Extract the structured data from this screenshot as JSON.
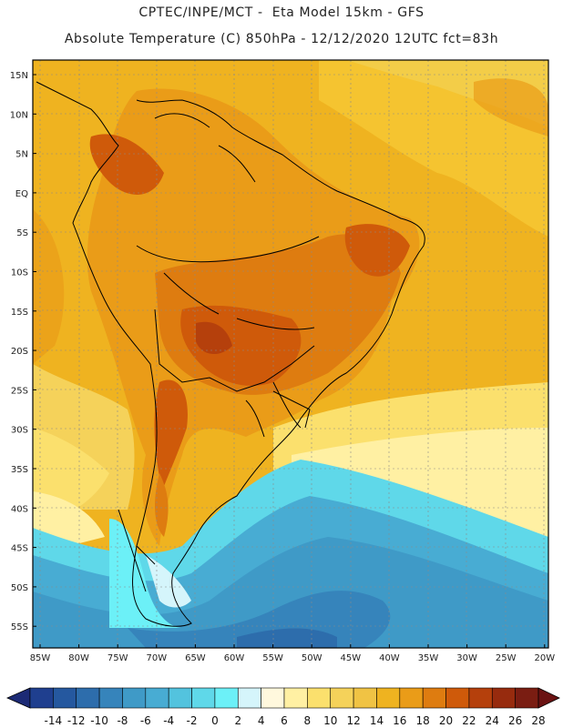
{
  "header": {
    "line1": "CPTEC/INPE/MCT -  Eta Model 15km - GFS",
    "line2": "Absolute Temperature (C) 850hPa - 12/12/2020 12UTC fct=83h"
  },
  "lat_ticks": [
    "15N",
    "10N",
    "5N",
    "EQ",
    "5S",
    "10S",
    "15S",
    "20S",
    "25S",
    "30S",
    "35S",
    "40S",
    "45S",
    "50S",
    "55S"
  ],
  "lon_ticks": [
    "85W",
    "80W",
    "75W",
    "70W",
    "65W",
    "60W",
    "55W",
    "50W",
    "45W",
    "40W",
    "35W",
    "30W",
    "25W",
    "20W"
  ],
  "colorbar": {
    "labels": [
      "-14",
      "-12",
      "-10",
      "-8",
      "-6",
      "-4",
      "-2",
      "0",
      "2",
      "4",
      "6",
      "8",
      "10",
      "12",
      "14",
      "16",
      "18",
      "20",
      "22",
      "24",
      "26",
      "28"
    ],
    "colors": [
      "#1f3f8f",
      "#25589f",
      "#2d6dac",
      "#3684bb",
      "#3f9ac7",
      "#48acd3",
      "#53c3de",
      "#5fd8e9",
      "#6cf0f7",
      "#d5f5fb",
      "#fff8dd",
      "#fff0a3",
      "#fbe06d",
      "#f5d25a",
      "#f0c344",
      "#efb320",
      "#ea9c18",
      "#de7c10",
      "#cf5a0a",
      "#b5400c",
      "#972b0e",
      "#7a1d12"
    ],
    "low_color": "#1c2a75",
    "high_color": "#6b1212"
  }
}
